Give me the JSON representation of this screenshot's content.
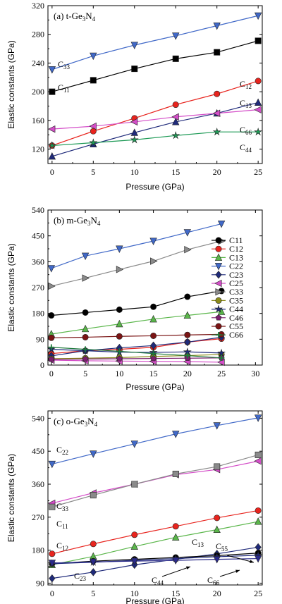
{
  "chart_data": [
    {
      "type": "line",
      "title": "(a) t-Ge3N4",
      "title_parts": [
        "(a) t-Ge",
        "3",
        "N",
        "4"
      ],
      "xlabel": "Pressure (GPa)",
      "ylabel": "Elastic constants (GPa)",
      "xlim": [
        -0.5,
        25.5
      ],
      "ylim": [
        100,
        320
      ],
      "xticks": [
        0,
        5,
        10,
        15,
        20,
        25
      ],
      "yticks": [
        120,
        160,
        200,
        240,
        280,
        320
      ],
      "x": [
        0,
        5,
        10,
        15,
        20,
        25
      ],
      "series": [
        {
          "name": "C11",
          "color": "#000000",
          "marker": "square",
          "values": [
            200,
            216,
            232,
            246,
            255,
            271
          ]
        },
        {
          "name": "C33",
          "color": "#4169c8",
          "marker": "tri-down",
          "values": [
            231,
            250,
            265,
            278,
            292,
            306
          ]
        },
        {
          "name": "C12",
          "color": "#e8241e",
          "marker": "circle",
          "values": [
            125,
            145,
            163,
            182,
            197,
            215
          ]
        },
        {
          "name": "C13",
          "color": "#1f2a7a",
          "marker": "tri-up",
          "values": [
            110,
            127,
            143,
            158,
            170,
            185
          ]
        },
        {
          "name": "C66",
          "color": "#d44ec8",
          "marker": "tri-left",
          "values": [
            148,
            152,
            158,
            165,
            170,
            175
          ]
        },
        {
          "name": "C44",
          "color": "#1e9a56",
          "marker": "star",
          "values": [
            125,
            129,
            133,
            139,
            144,
            144
          ]
        }
      ],
      "annotations": [
        {
          "text": "C",
          "sub": "33",
          "series": "C33"
        },
        {
          "text": "C",
          "sub": "11",
          "series": "C11"
        },
        {
          "text": "C",
          "sub": "12",
          "series": "C12"
        },
        {
          "text": "C",
          "sub": "13",
          "series": "C13"
        },
        {
          "text": "C",
          "sub": "66",
          "series": "C66"
        },
        {
          "text": "C",
          "sub": "44",
          "series": "C44"
        }
      ]
    },
    {
      "type": "line",
      "title": "(b) m-Ge3N4",
      "title_parts": [
        "(b) m-Ge",
        "3",
        "N",
        "4"
      ],
      "xlabel": "Pressure (GPa)",
      "ylabel": "Elastic constants (GPa)",
      "xlim": [
        -0.5,
        31
      ],
      "ylim": [
        0,
        540
      ],
      "xticks": [
        0,
        5,
        10,
        15,
        20,
        25,
        30
      ],
      "yticks": [
        0,
        90,
        180,
        270,
        360,
        450,
        540
      ],
      "x": [
        0,
        5,
        10,
        15,
        20,
        25
      ],
      "legend": "right",
      "series": [
        {
          "name": "C11",
          "color": "#000000",
          "marker": "circle",
          "values": [
            173,
            183,
            193,
            203,
            238,
            258
          ]
        },
        {
          "name": "C12",
          "color": "#e8241e",
          "marker": "circle",
          "values": [
            40,
            50,
            55,
            62,
            80,
            92
          ]
        },
        {
          "name": "C13",
          "color": "#5ab64a",
          "marker": "tri-up",
          "values": [
            108,
            126,
            143,
            160,
            173,
            186
          ]
        },
        {
          "name": "C22",
          "color": "#4169c8",
          "marker": "tri-down",
          "values": [
            337,
            380,
            405,
            432,
            462,
            492
          ]
        },
        {
          "name": "C23",
          "color": "#1f2a7a",
          "marker": "diamond",
          "values": [
            32,
            50,
            60,
            68,
            80,
            97
          ]
        },
        {
          "name": "C25",
          "color": "#d44ec8",
          "marker": "tri-left",
          "values": [
            17,
            15,
            14,
            13,
            12,
            10
          ]
        },
        {
          "name": "C33",
          "color": "#8a8a8a",
          "marker": "tri-right",
          "values": [
            275,
            303,
            333,
            362,
            402,
            432
          ]
        },
        {
          "name": "C35",
          "color": "#8a8a1a",
          "marker": "circle",
          "values": [
            22,
            24,
            26,
            30,
            33,
            37
          ]
        },
        {
          "name": "C44",
          "color": "#1f2a7a",
          "marker": "star",
          "values": [
            55,
            50,
            45,
            44,
            46,
            42
          ]
        },
        {
          "name": "C46",
          "color": "#7a1f6e",
          "marker": "pentagon",
          "values": [
            20,
            21,
            22,
            23,
            24,
            25
          ]
        },
        {
          "name": "C55",
          "color": "#7a1414",
          "marker": "circle",
          "values": [
            95,
            97,
            100,
            102,
            105,
            107
          ]
        },
        {
          "name": "C66",
          "color": "#1e7a3c",
          "marker": "plus",
          "values": [
            62,
            55,
            48,
            40,
            33,
            25
          ]
        }
      ]
    },
    {
      "type": "line",
      "title": "(c) o-Ge3N4",
      "title_parts": [
        "(c) o-Ge",
        "3",
        "N",
        "4"
      ],
      "xlabel": "Pressure (GPa)",
      "ylabel": "Elastic constants (GPa)",
      "xlim": [
        -0.5,
        25.5
      ],
      "ylim": [
        85,
        560
      ],
      "xticks": [
        0,
        5,
        10,
        15,
        20,
        25
      ],
      "yticks": [
        90,
        180,
        270,
        360,
        450,
        540
      ],
      "x": [
        0,
        5,
        10,
        15,
        20,
        25
      ],
      "series": [
        {
          "name": "C22",
          "color": "#4169c8",
          "marker": "tri-down",
          "values": [
            415,
            443,
            470,
            497,
            520,
            541
          ]
        },
        {
          "name": "C33",
          "color": "#d44ec8",
          "marker": "tri-left",
          "values": [
            308,
            336,
            360,
            386,
            400,
            423
          ]
        },
        {
          "name": "C11",
          "color": "#8a8a8a",
          "marker": "square",
          "values": [
            298,
            330,
            360,
            388,
            408,
            440
          ]
        },
        {
          "name": "C12",
          "color": "#e8241e",
          "marker": "circle",
          "values": [
            170,
            197,
            222,
            245,
            268,
            288
          ]
        },
        {
          "name": "C13",
          "color": "#5ab64a",
          "marker": "tri-up",
          "values": [
            140,
            163,
            190,
            215,
            236,
            258
          ]
        },
        {
          "name": "C23",
          "color": "#1f2a7a",
          "marker": "diamond",
          "values": [
            103,
            120,
            140,
            155,
            170,
            188
          ]
        },
        {
          "name": "C55",
          "color": "#000000",
          "marker": "circle",
          "values": [
            143,
            150,
            155,
            160,
            165,
            172
          ]
        },
        {
          "name": "C44",
          "color": "#1f2a7a",
          "marker": "star",
          "values": [
            143,
            147,
            152,
            157,
            162,
            166
          ]
        },
        {
          "name": "C66",
          "color": "#2a2a8a",
          "marker": "tri-down",
          "values": [
            145,
            148,
            150,
            152,
            155,
            157
          ]
        }
      ],
      "annotations": [
        {
          "text": "C",
          "sub": "22",
          "series": "C22"
        },
        {
          "text": "C",
          "sub": "33",
          "series": "C33"
        },
        {
          "text": "C",
          "sub": "11",
          "series": "C11"
        },
        {
          "text": "C",
          "sub": "12",
          "series": "C12"
        },
        {
          "text": "C",
          "sub": "13",
          "series": "C13"
        },
        {
          "text": "C",
          "sub": "23",
          "series": "C23"
        },
        {
          "text": "C",
          "sub": "44",
          "series": "C44"
        },
        {
          "text": "C",
          "sub": "55",
          "series": "C55"
        },
        {
          "text": "C",
          "sub": "66",
          "series": "C66"
        }
      ]
    }
  ]
}
